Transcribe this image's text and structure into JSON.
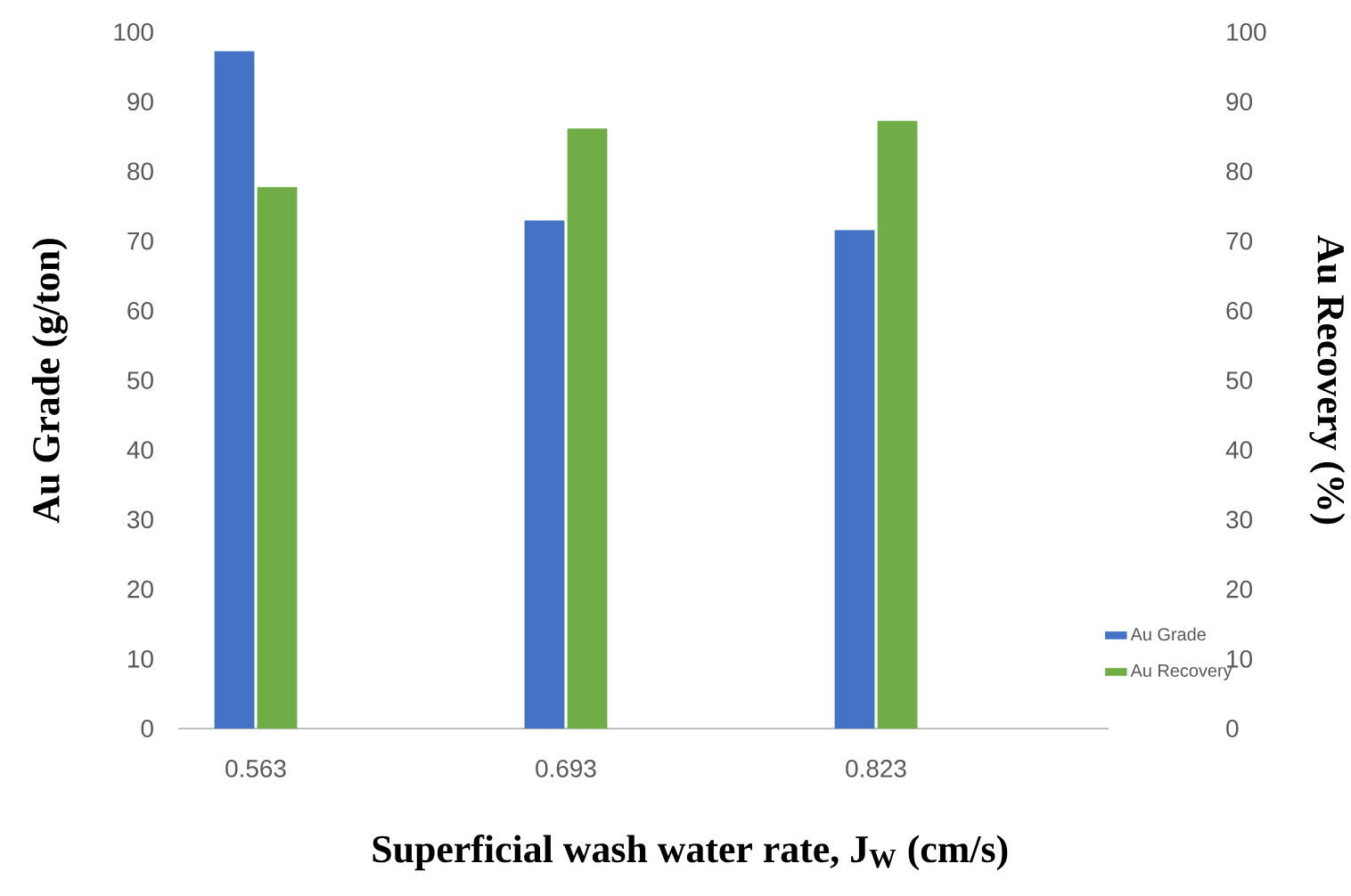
{
  "chart_data": {
    "type": "bar",
    "xlabel": "Superficial wash water rate, J$_{W}$ (cm/s)",
    "ylabel": "Au Grade (g/ton)",
    "y2label": "Au Recovery (%)",
    "categories": [
      "0.563",
      "0.693",
      "0.823"
    ],
    "series": [
      {
        "name": "Au Grade",
        "color": "#4472c4",
        "values": [
          97.2,
          72.9,
          71.5
        ]
      },
      {
        "name": "Au Recovery",
        "color": "#70ad47",
        "values": [
          77.7,
          86.1,
          87.2
        ],
        "axis": "y2"
      }
    ],
    "ylim": [
      0,
      100
    ],
    "yticks": [
      0,
      10,
      20,
      30,
      40,
      50,
      60,
      70,
      80,
      90,
      100
    ],
    "y2lim": [
      0,
      100
    ],
    "y2ticks": [
      0,
      10,
      20,
      30,
      40,
      50,
      60,
      70,
      80,
      90,
      100
    ],
    "legend": "bottom right"
  }
}
